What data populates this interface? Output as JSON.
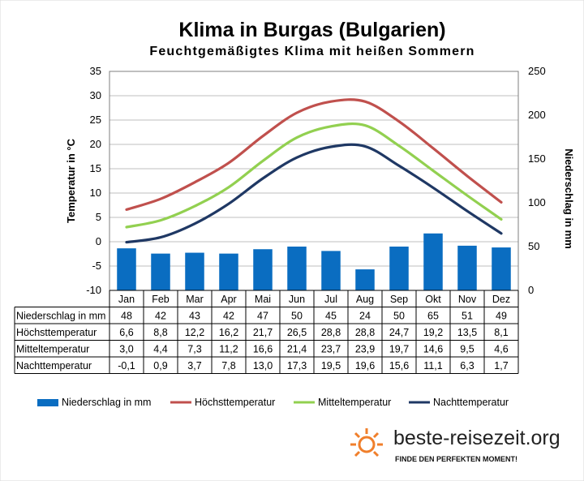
{
  "chart_data": {
    "type": "bar+line",
    "title": "Klima in Burgas (Bulgarien)",
    "subtitle": "Feuchtgemäßigtes Klima mit heißen Sommern",
    "categories": [
      "Jan",
      "Feb",
      "Mar",
      "Apr",
      "Mai",
      "Jun",
      "Jul",
      "Aug",
      "Sep",
      "Okt",
      "Nov",
      "Dez"
    ],
    "y_left": {
      "label": "Temperatur in °C",
      "min": -10,
      "max": 35,
      "ticks": [
        "35",
        "30",
        "25",
        "20",
        "15",
        "10",
        "5",
        "0",
        "-5",
        "-10"
      ]
    },
    "y_right": {
      "label": "Niederschlag in mm",
      "min": 0,
      "max": 250,
      "ticks": [
        "250",
        "200",
        "150",
        "100",
        "50",
        "0"
      ]
    },
    "bars": {
      "name": "Niederschlag in mm",
      "axis": "right",
      "color": "#0a6dc1",
      "values": [
        48,
        42,
        43,
        42,
        47,
        50,
        45,
        24,
        50,
        65,
        51,
        49
      ]
    },
    "series": [
      {
        "name": "Höchsttemperatur",
        "axis": "left",
        "color": "#c0504d",
        "values": [
          6.6,
          8.8,
          12.2,
          16.2,
          21.7,
          26.5,
          28.8,
          28.8,
          24.7,
          19.2,
          13.5,
          8.1
        ]
      },
      {
        "name": "Mitteltemperatur",
        "axis": "left",
        "color": "#92d050",
        "values": [
          3.0,
          4.4,
          7.3,
          11.2,
          16.6,
          21.4,
          23.7,
          23.9,
          19.7,
          14.6,
          9.5,
          4.6
        ]
      },
      {
        "name": "Nachttemperatur",
        "axis": "left",
        "color": "#1f3864",
        "values": [
          -0.1,
          0.9,
          3.7,
          7.8,
          13.0,
          17.3,
          19.5,
          19.6,
          15.6,
          11.1,
          6.3,
          1.7
        ]
      }
    ],
    "table": {
      "rows": [
        {
          "label": "Niederschlag in mm",
          "cells": [
            "48",
            "42",
            "43",
            "42",
            "47",
            "50",
            "45",
            "24",
            "50",
            "65",
            "51",
            "49"
          ]
        },
        {
          "label": "Höchsttemperatur",
          "cells": [
            "6,6",
            "8,8",
            "12,2",
            "16,2",
            "21,7",
            "26,5",
            "28,8",
            "28,8",
            "24,7",
            "19,2",
            "13,5",
            "8,1"
          ]
        },
        {
          "label": "Mitteltemperatur",
          "cells": [
            "3,0",
            "4,4",
            "7,3",
            "11,2",
            "16,6",
            "21,4",
            "23,7",
            "23,9",
            "19,7",
            "14,6",
            "9,5",
            "4,6"
          ]
        },
        {
          "label": "Nachttemperatur",
          "cells": [
            "-0,1",
            "0,9",
            "3,7",
            "7,8",
            "13,0",
            "17,3",
            "19,5",
            "19,6",
            "15,6",
            "11,1",
            "6,3",
            "1,7"
          ]
        }
      ]
    },
    "legend": {
      "placement": "bottom",
      "entries": [
        "Niederschlag in mm",
        "Höchsttemperatur",
        "Mitteltemperatur",
        "Nachttemperatur"
      ]
    },
    "grid": true
  },
  "branding": {
    "site": "beste-reisezeit.org",
    "slogan": "FINDE DEN PERFEKTEN MOMENT!",
    "logo_icon": "sun-icon",
    "accent": "#f07f2b"
  }
}
